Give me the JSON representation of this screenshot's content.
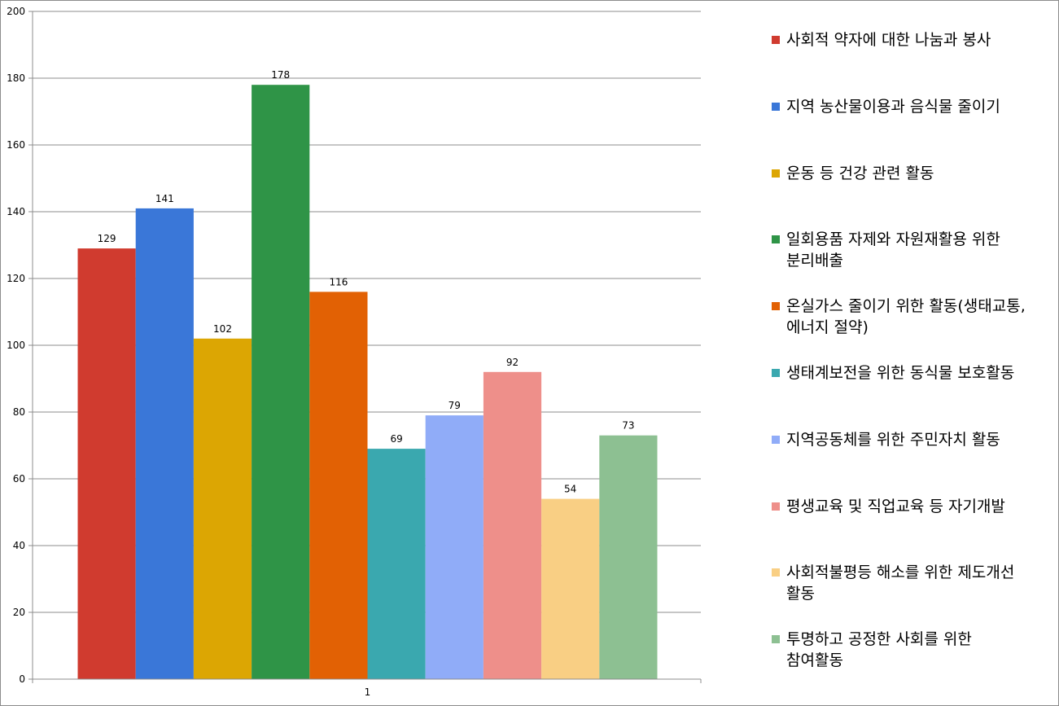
{
  "chart_data": {
    "type": "bar",
    "categories": [
      "1"
    ],
    "ylim": [
      0,
      200
    ],
    "yticks": [
      0,
      20,
      40,
      60,
      80,
      100,
      120,
      140,
      160,
      180,
      200
    ],
    "grid": true,
    "legend_position": "right",
    "series": [
      {
        "name": "사회적 약자에 대한 나눔과 봉사",
        "values": [
          129
        ],
        "color": "#d03b2f"
      },
      {
        "name": "지역 농산물이용과 음식물 줄이기",
        "values": [
          141
        ],
        "color": "#3a77d8"
      },
      {
        "name": "운동 등 건강 관련 활동",
        "values": [
          102
        ],
        "color": "#dca603"
      },
      {
        "name": "일회용품 자제와 자원재활용 위한 분리배출",
        "values": [
          178
        ],
        "color": "#2f9447"
      },
      {
        "name": "온실가스 줄이기 위한 활동(생태교통, 에너지 절약)",
        "values": [
          116
        ],
        "color": "#e26104"
      },
      {
        "name": "생태계보전을 위한 동식물 보호활동",
        "values": [
          69
        ],
        "color": "#3aa8af"
      },
      {
        "name": "지역공동체를 위한 주민자치 활동",
        "values": [
          79
        ],
        "color": "#90acf8"
      },
      {
        "name": "평생교육 및 직업교육 등 자기개발",
        "values": [
          92
        ],
        "color": "#ee8f8a"
      },
      {
        "name": "사회적불평등 해소를 위한 제도개선 활동",
        "values": [
          54
        ],
        "color": "#f9cf84"
      },
      {
        "name": "투명하고 공정한 사회를 위한 참여활동",
        "values": [
          73
        ],
        "color": "#8dc092"
      }
    ]
  },
  "legend": {
    "items": [
      {
        "lines": [
          "사회적 약자에 대한 나눔과 봉사"
        ]
      },
      {
        "lines": [
          "지역 농산물이용과 음식물 줄이기"
        ]
      },
      {
        "lines": [
          "운동 등 건강 관련 활동"
        ]
      },
      {
        "lines": [
          "일회용품 자제와 자원재활용 위한",
          "분리배출"
        ]
      },
      {
        "lines": [
          "온실가스 줄이기 위한 활동(생태교통,",
          "에너지 절약)"
        ]
      },
      {
        "lines": [
          "생태계보전을 위한 동식물 보호활동"
        ]
      },
      {
        "lines": [
          "지역공동체를 위한 주민자치 활동"
        ]
      },
      {
        "lines": [
          "평생교육 및 직업교육 등 자기개발"
        ]
      },
      {
        "lines": [
          "사회적불평등 해소를 위한 제도개선",
          "활동"
        ]
      },
      {
        "lines": [
          "투명하고 공정한 사회를 위한",
          "참여활동"
        ]
      }
    ]
  }
}
